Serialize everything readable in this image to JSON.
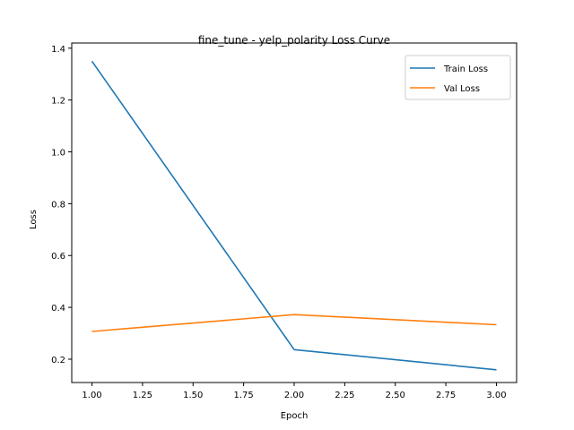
{
  "chart_data": {
    "type": "line",
    "title": "fine_tune - yelp_polarity Loss Curve",
    "xlabel": "Epoch",
    "ylabel": "Loss",
    "xlim": [
      0.9,
      3.1
    ],
    "ylim": [
      0.11,
      1.42
    ],
    "x": [
      1.0,
      2.0,
      3.0
    ],
    "xticks": [
      "1.00",
      "1.25",
      "1.50",
      "1.75",
      "2.00",
      "2.25",
      "2.50",
      "2.75",
      "3.00"
    ],
    "yticks": [
      "0.2",
      "0.4",
      "0.6",
      "0.8",
      "1.0",
      "1.2",
      "1.4"
    ],
    "grid": false,
    "legend_position": "top-right",
    "series": [
      {
        "name": "Train Loss",
        "color": "#1f77b4",
        "values": [
          1.35,
          0.237,
          0.159
        ]
      },
      {
        "name": "Val Loss",
        "color": "#ff7f0e",
        "values": [
          0.307,
          0.372,
          0.333
        ]
      }
    ]
  }
}
